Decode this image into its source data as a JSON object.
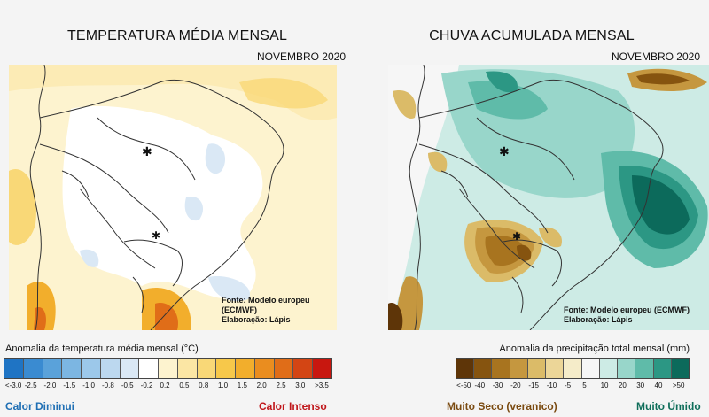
{
  "temperature_panel": {
    "title": "TEMPERATURA MÉDIA MENSAL",
    "period": "NOVEMBRO 2020",
    "credit_source": "Fonte: Modelo europeu (ECMWF)",
    "credit_author": "Elaboração: Lápis",
    "legend_title": "Anomalia da temperatura média mensal (°C)",
    "scale_labels": [
      "<-3.0",
      "-2.5",
      "-2.0",
      "-1.5",
      "-1.0",
      "-0.8",
      "-0.5",
      "-0.2",
      "0.2",
      "0.5",
      "0.8",
      "1.0",
      "1.5",
      "2.0",
      "2.5",
      "3.0",
      ">3.5"
    ],
    "scale_colors": [
      "#1f74c4",
      "#3a8bd1",
      "#5aa2da",
      "#7cb6e2",
      "#9cc8ea",
      "#bcd8ef",
      "#dae8f5",
      "#ffffff",
      "#fdf3cf",
      "#fbe6a4",
      "#f9d877",
      "#f7c84a",
      "#f2ae2c",
      "#ea8d1f",
      "#e06d18",
      "#d34514",
      "#c8170f"
    ],
    "label_low": "Calor Diminui",
    "label_high": "Calor Intenso"
  },
  "rain_panel": {
    "title": "CHUVA ACUMULADA MENSAL",
    "period": "NOVEMBRO 2020",
    "credit_source": "Fonte: Modelo europeu (ECMWF)",
    "credit_author": "Elaboração: Lápis",
    "legend_title": "Anomalia da precipitação total mensal (mm)",
    "scale_labels": [
      "<-50",
      "-40",
      "-30",
      "-20",
      "-15",
      "-10",
      "-5",
      "5",
      "10",
      "20",
      "30",
      "40",
      ">50"
    ],
    "scale_colors": [
      "#5e3508",
      "#86540f",
      "#a8741f",
      "#c5973f",
      "#dbbb68",
      "#ecd698",
      "#f5ecc9",
      "#f6f6f6",
      "#cdebe5",
      "#98d6ca",
      "#5fbba9",
      "#2c9784",
      "#0c6a5b"
    ],
    "label_low": "Muito Seco  (veranico)",
    "label_high": "Muito Úmido"
  }
}
